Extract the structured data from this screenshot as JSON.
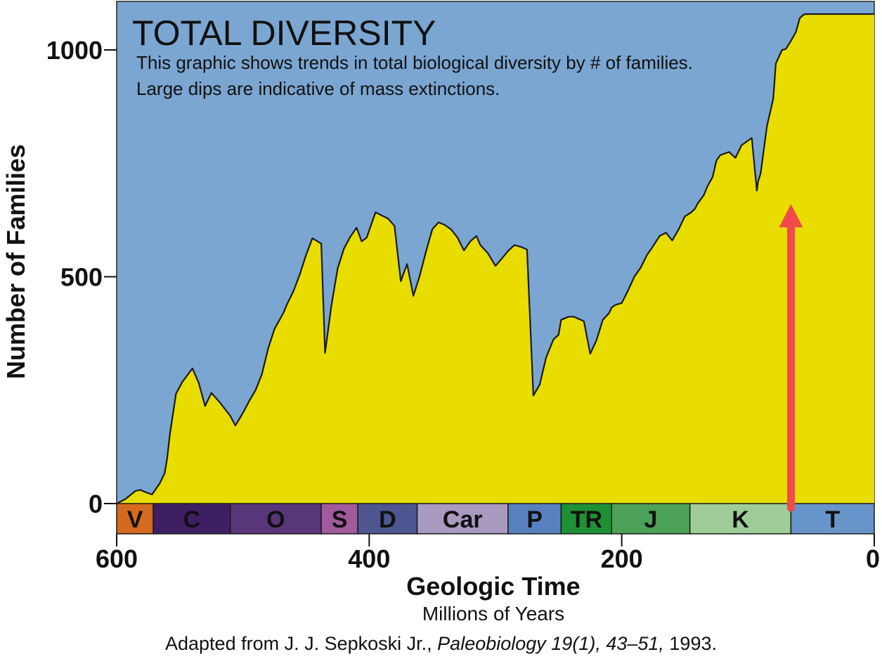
{
  "chart_data": {
    "type": "area",
    "title": "TOTAL DIVERSITY",
    "subtitle_lines": [
      "This graphic shows trends in total biological diversity by # of families.",
      "Large dips are indicative of mass extinctions."
    ],
    "xlabel": "Geologic Time",
    "xlabel_sub": "Millions of Years",
    "ylabel": "Number of Families",
    "xlim": [
      600,
      0
    ],
    "ylim": [
      0,
      1000
    ],
    "x_ticks": [
      "600",
      "400",
      "200",
      "0"
    ],
    "y_ticks": [
      "0",
      "500",
      "1000"
    ],
    "colors": {
      "plot_bg": "#7ba6d2",
      "fill": "#e9dd00",
      "line": "#1a1a1a",
      "arrow": "#f04a4a"
    },
    "series": [
      {
        "x": [
          600,
          593,
          585,
          581,
          578,
          572,
          566,
          562,
          560,
          558,
          553,
          548,
          540,
          535,
          530,
          525,
          518,
          510,
          506,
          500,
          495,
          490,
          485,
          480,
          475,
          468,
          465,
          460,
          455,
          450,
          445,
          438,
          435,
          430,
          425,
          420,
          415,
          410,
          406,
          402,
          395,
          390,
          385,
          380,
          375,
          370,
          365,
          360,
          355,
          350,
          345,
          340,
          335,
          330,
          325,
          320,
          315,
          312,
          306,
          300,
          295,
          290,
          285,
          280,
          275,
          270,
          265,
          260,
          258,
          254,
          250,
          248,
          242,
          238,
          230,
          225,
          220,
          215,
          210,
          208,
          205,
          200,
          195,
          190,
          185,
          180,
          176,
          170,
          165,
          160,
          155,
          150,
          145,
          142,
          140,
          135,
          132,
          128,
          125,
          122,
          115,
          110,
          105,
          100,
          97,
          93,
          92,
          90,
          85,
          80,
          78,
          73,
          70,
          66,
          62,
          59,
          56,
          54,
          50,
          47,
          44,
          40,
          36,
          32,
          28,
          25,
          22,
          18,
          14,
          10,
          0
        ],
        "y": [
          0,
          10,
          28,
          30,
          26,
          20,
          44,
          67,
          100,
          150,
          242,
          268,
          298,
          266,
          215,
          244,
          222,
          193,
          172,
          200,
          226,
          250,
          285,
          342,
          385,
          420,
          440,
          468,
          505,
          548,
          585,
          573,
          332,
          435,
          518,
          562,
          588,
          608,
          578,
          586,
          642,
          635,
          628,
          612,
          490,
          528,
          458,
          502,
          556,
          605,
          620,
          614,
          604,
          586,
          558,
          578,
          590,
          570,
          552,
          524,
          540,
          557,
          570,
          566,
          560,
          238,
          262,
          321,
          335,
          362,
          372,
          405,
          412,
          412,
          402,
          330,
          360,
          405,
          420,
          432,
          438,
          442,
          470,
          500,
          520,
          548,
          564,
          590,
          597,
          580,
          604,
          633,
          642,
          650,
          661,
          680,
          700,
          720,
          756,
          768,
          775,
          762,
          790,
          800,
          806,
          690,
          710,
          728,
          832,
          893,
          970,
          1000,
          1002,
          1020,
          1040,
          1070,
          1078,
          1079,
          1079,
          1079,
          1079,
          1079,
          1079,
          1079,
          1079,
          1079,
          1079,
          1079,
          1079,
          1079,
          1079
        ]
      }
    ],
    "periods": [
      {
        "label": "V",
        "start": 600,
        "end": 571,
        "color": "#d46a1f"
      },
      {
        "label": "C",
        "start": 571,
        "end": 510,
        "color": "#3f1f64"
      },
      {
        "label": "O",
        "start": 510,
        "end": 438,
        "color": "#59357a"
      },
      {
        "label": "S",
        "start": 438,
        "end": 409,
        "color": "#a15b9c"
      },
      {
        "label": "D",
        "start": 409,
        "end": 362,
        "color": "#4e5691"
      },
      {
        "label": "Car",
        "start": 362,
        "end": 290,
        "color": "#a99ac0"
      },
      {
        "label": "P",
        "start": 290,
        "end": 248,
        "color": "#5780bf"
      },
      {
        "label": "TR",
        "start": 248,
        "end": 208,
        "color": "#1e9134"
      },
      {
        "label": "J",
        "start": 208,
        "end": 146,
        "color": "#4ca258"
      },
      {
        "label": "K",
        "start": 146,
        "end": 66,
        "color": "#9fcd98"
      },
      {
        "label": "T",
        "start": 66,
        "end": 0,
        "color": "#6795c9"
      }
    ],
    "annotation": {
      "type": "arrow",
      "x": 66,
      "y_from": -5,
      "y_to": 660
    }
  },
  "caption": {
    "prefix": "Adapted from J. J. Sepkoski Jr., ",
    "journal": "Paleobiology 19(1), 43–51,",
    "suffix": " 1993."
  }
}
